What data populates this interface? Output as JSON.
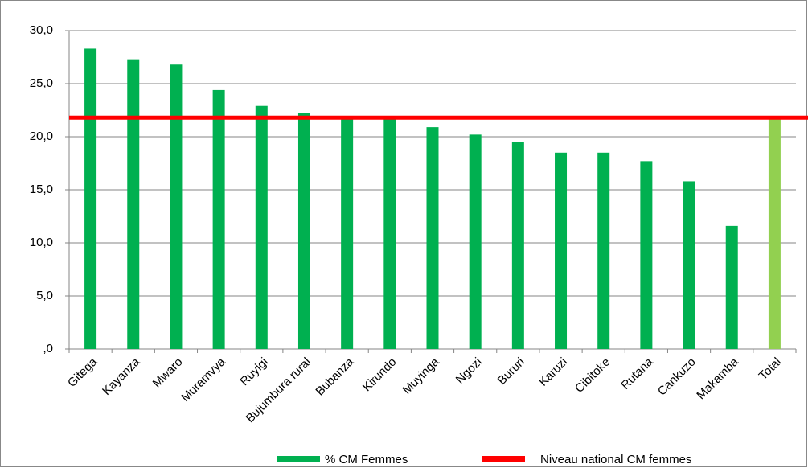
{
  "chart_data": {
    "type": "bar",
    "categories": [
      "Gitega",
      "Kayanza",
      "Mwaro",
      "Muramvya",
      "Ruyigi",
      "Bujumbura rural",
      "Bubanza",
      "Kirundo",
      "Muyinga",
      "Ngozi",
      "Bururi",
      "Karuzi",
      "Cibitoke",
      "Rutana",
      "Cankuzo",
      "Makamba",
      "Total"
    ],
    "series": [
      {
        "name": "% CM Femmes",
        "color": "#00b050",
        "values": [
          28.3,
          27.3,
          26.8,
          24.4,
          22.9,
          22.2,
          21.9,
          21.8,
          20.9,
          20.2,
          19.5,
          18.5,
          18.5,
          17.7,
          15.8,
          11.6,
          21.7
        ],
        "bar_colors": [
          "#00b050",
          "#00b050",
          "#00b050",
          "#00b050",
          "#00b050",
          "#00b050",
          "#00b050",
          "#00b050",
          "#00b050",
          "#00b050",
          "#00b050",
          "#00b050",
          "#00b050",
          "#00b050",
          "#00b050",
          "#00b050",
          "#92d050"
        ]
      }
    ],
    "reference_line": {
      "name": "Niveau national CM femmes",
      "value": 21.8,
      "color": "#ff0000"
    },
    "ylim": [
      0,
      30
    ],
    "yticks": [
      {
        "value": 0,
        "label": ",0"
      },
      {
        "value": 5,
        "label": "5,0"
      },
      {
        "value": 10,
        "label": "10,0"
      },
      {
        "value": 15,
        "label": "15,0"
      },
      {
        "value": 20,
        "label": "20,0"
      },
      {
        "value": 25,
        "label": "25,0"
      },
      {
        "value": 30,
        "label": "30,0"
      }
    ],
    "grid": true,
    "legend": "bottom"
  }
}
